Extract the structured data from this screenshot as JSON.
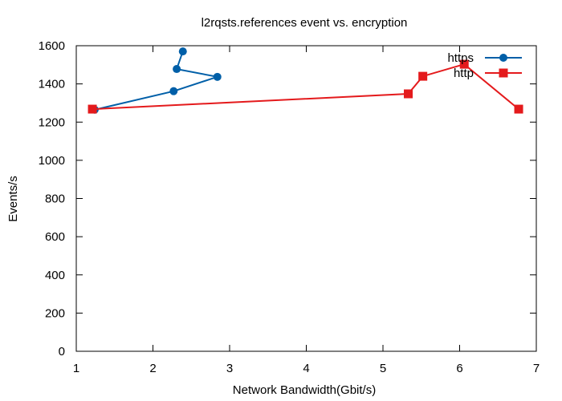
{
  "chart_data": {
    "type": "line",
    "title": "l2rqsts.references event vs. encryption",
    "xlabel": "Network Bandwidth(Gbit/s)",
    "ylabel": "Events/s",
    "xlim": [
      1,
      7
    ],
    "ylim": [
      0,
      1600
    ],
    "xticks": [
      1,
      2,
      3,
      4,
      5,
      6,
      7
    ],
    "yticks": [
      0,
      200,
      400,
      600,
      800,
      1000,
      1200,
      1400,
      1600
    ],
    "grid": false,
    "legend_position": "top-right",
    "series": [
      {
        "name": "https",
        "color": "#005fa8",
        "marker": "circle",
        "x": [
          1.24,
          2.27,
          2.84,
          2.31,
          2.39
        ],
        "y": [
          1265,
          1362,
          1437,
          1478,
          1570
        ]
      },
      {
        "name": "http",
        "color": "#e41a1c",
        "marker": "square",
        "x": [
          1.21,
          5.33,
          5.52,
          6.06,
          6.77
        ],
        "y": [
          1268,
          1348,
          1440,
          1503,
          1268
        ]
      }
    ]
  }
}
